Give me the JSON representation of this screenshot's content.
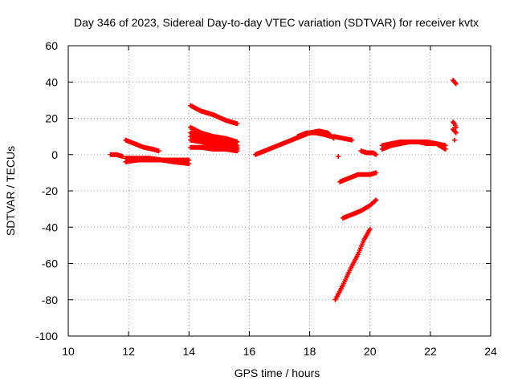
{
  "chart_data": {
    "type": "scatter",
    "title": "Day 346 of 2023, Sidereal Day-to-day VTEC variation (SDTVAR) for receiver kvtx",
    "xlabel": "GPS time / hours",
    "ylabel": "SDTVAR / TECUs",
    "xlim": [
      10,
      24
    ],
    "ylim": [
      -100,
      60
    ],
    "xticks": [
      10,
      12,
      14,
      16,
      18,
      20,
      22,
      24
    ],
    "yticks": [
      -100,
      -80,
      -60,
      -40,
      -20,
      0,
      20,
      40,
      60
    ],
    "grid": true,
    "legend": "none",
    "marker": "plus",
    "marker_color": "#ff0000",
    "segments": [
      {
        "x": [
          11.4,
          11.6,
          11.8
        ],
        "y": [
          0,
          0,
          -1
        ]
      },
      {
        "x": [
          11.9,
          12.2,
          12.5,
          12.8,
          13.0
        ],
        "y": [
          8,
          6,
          4,
          3,
          2
        ]
      },
      {
        "x": [
          11.9,
          12.3,
          12.7,
          13.1,
          13.5,
          14.0
        ],
        "y": [
          -4,
          -3,
          -3,
          -3,
          -4,
          -5
        ]
      },
      {
        "x": [
          11.9,
          12.3,
          12.7,
          13.1,
          13.5,
          14.0
        ],
        "y": [
          -2,
          -2,
          -2,
          -3,
          -3,
          -3
        ]
      },
      {
        "x": [
          14.05,
          14.4,
          14.8,
          15.2,
          15.6
        ],
        "y": [
          27,
          24,
          22,
          19,
          17
        ]
      },
      {
        "x": [
          14.05,
          14.4,
          14.8,
          15.2,
          15.6
        ],
        "y": [
          15,
          12,
          10,
          9,
          7
        ]
      },
      {
        "x": [
          14.05,
          14.4,
          14.8,
          15.2,
          15.6
        ],
        "y": [
          12,
          10,
          8,
          7,
          5
        ]
      },
      {
        "x": [
          14.05,
          14.4,
          14.8,
          15.2,
          15.6
        ],
        "y": [
          10,
          8,
          6,
          5,
          4
        ]
      },
      {
        "x": [
          14.05,
          14.4,
          14.8,
          15.2,
          15.6
        ],
        "y": [
          8,
          7,
          5,
          4,
          3
        ]
      },
      {
        "x": [
          14.05,
          14.4,
          14.8,
          15.2,
          15.6
        ],
        "y": [
          4,
          4,
          3,
          3,
          2
        ]
      },
      {
        "x": [
          16.2,
          16.5,
          16.8,
          17.1,
          17.4,
          17.7,
          18.0,
          18.3,
          18.6,
          18.8
        ],
        "y": [
          0,
          2,
          4,
          6,
          8,
          10,
          12,
          13,
          12,
          9
        ]
      },
      {
        "x": [
          17.6,
          17.9,
          18.2,
          18.5,
          18.7
        ],
        "y": [
          10,
          12,
          12,
          11,
          10
        ]
      },
      {
        "x": [
          18.8,
          19.1,
          19.4
        ],
        "y": [
          10,
          9,
          8
        ]
      },
      {
        "x": [
          18.95
        ],
        "y": [
          -1
        ]
      },
      {
        "x": [
          19.0,
          19.3,
          19.6,
          20.0,
          20.2
        ],
        "y": [
          -15,
          -13,
          -11,
          -11,
          -10
        ]
      },
      {
        "x": [
          19.1,
          19.4,
          19.7,
          20.0,
          20.2
        ],
        "y": [
          -35,
          -33,
          -31,
          -28,
          -25
        ]
      },
      {
        "x": [
          18.85,
          19.1,
          19.35,
          19.6,
          19.8,
          20.0
        ],
        "y": [
          -80,
          -72,
          -63,
          -55,
          -47,
          -41
        ]
      },
      {
        "x": [
          19.7,
          19.9,
          20.1,
          20.2
        ],
        "y": [
          2,
          1,
          1,
          0
        ]
      },
      {
        "x": [
          20.4,
          20.7,
          21.0,
          21.3,
          21.6,
          21.9,
          22.2,
          22.5
        ],
        "y": [
          3,
          5,
          6,
          7,
          7,
          6,
          6,
          3
        ]
      },
      {
        "x": [
          20.4,
          20.7,
          21.0,
          21.3,
          21.6,
          21.9,
          22.2,
          22.5
        ],
        "y": [
          5,
          6,
          7,
          7,
          7,
          7,
          6,
          5
        ]
      },
      {
        "x": [
          22.75,
          22.85
        ],
        "y": [
          41,
          39
        ]
      },
      {
        "x": [
          22.75,
          22.8,
          22.85
        ],
        "y": [
          18,
          17,
          15
        ]
      },
      {
        "x": [
          22.75,
          22.8,
          22.85
        ],
        "y": [
          14,
          13,
          12
        ]
      },
      {
        "x": [
          22.8
        ],
        "y": [
          8
        ]
      }
    ]
  }
}
